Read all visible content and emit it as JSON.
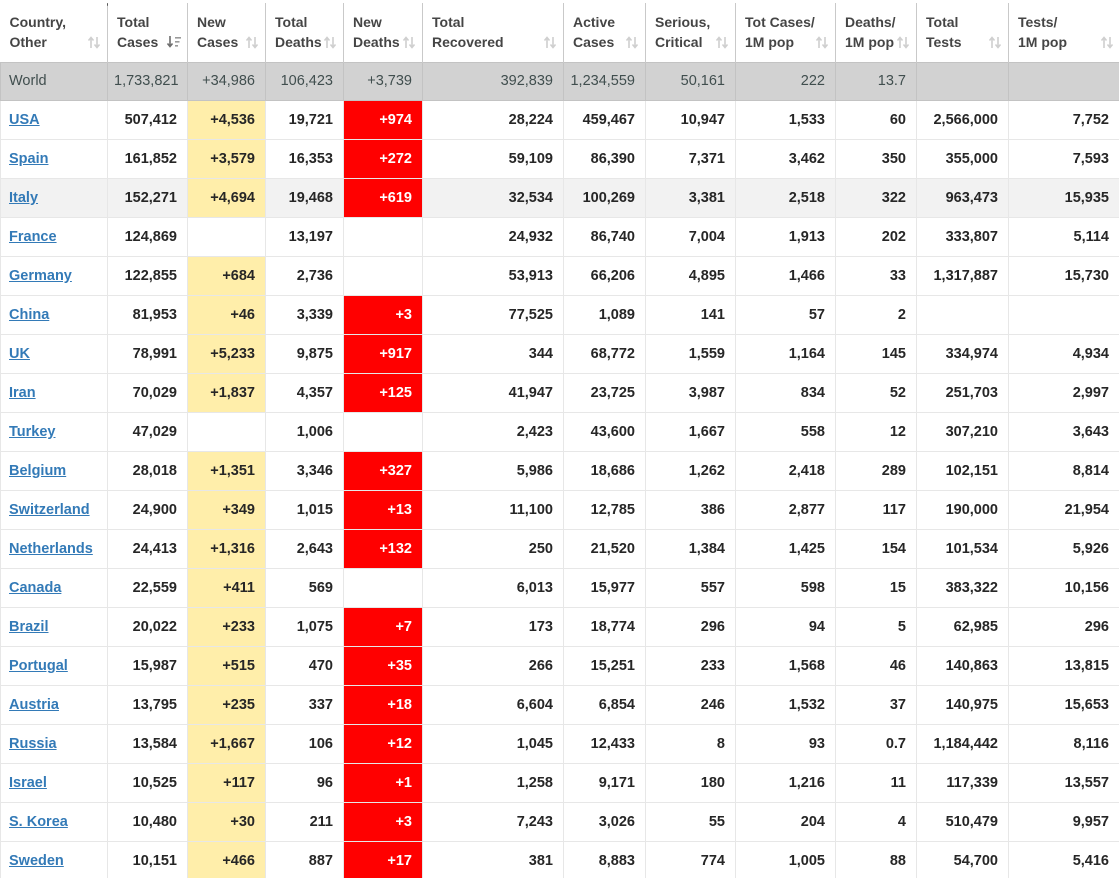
{
  "colors": {
    "new_cases_bg": "#FFEEAA",
    "new_deaths_bg": "#FF0000",
    "world_row_bg": "#D2D2D2",
    "highlight_row_bg": "#F2F2F2",
    "link_blue": "#337AB7",
    "header_text": "#454545",
    "cell_text": "#262626"
  },
  "table": {
    "columns": [
      {
        "key": "country",
        "line1": "Country,",
        "line2": "Other",
        "sort": "inactive",
        "sort_icon": "sort-updown-icon"
      },
      {
        "key": "total_cases",
        "line1": "Total",
        "line2": "Cases",
        "sort": "desc",
        "sort_icon": "sort-amount-desc-icon"
      },
      {
        "key": "new_cases",
        "line1": "New",
        "line2": "Cases",
        "sort": "inactive",
        "sort_icon": "sort-updown-icon"
      },
      {
        "key": "total_deaths",
        "line1": "Total",
        "line2": "Deaths",
        "sort": "inactive",
        "sort_icon": "sort-updown-icon"
      },
      {
        "key": "new_deaths",
        "line1": "New",
        "line2": "Deaths",
        "sort": "inactive",
        "sort_icon": "sort-updown-icon"
      },
      {
        "key": "total_recovered",
        "line1": "Total",
        "line2": "Recovered",
        "sort": "inactive",
        "sort_icon": "sort-updown-icon"
      },
      {
        "key": "active_cases",
        "line1": "Active",
        "line2": "Cases",
        "sort": "inactive",
        "sort_icon": "sort-updown-icon"
      },
      {
        "key": "serious_critical",
        "line1": "Serious,",
        "line2": "Critical",
        "sort": "inactive",
        "sort_icon": "sort-updown-icon"
      },
      {
        "key": "tot_cases_1m",
        "line1": "Tot Cases/",
        "line2": "1M pop",
        "sort": "inactive",
        "sort_icon": "sort-updown-icon"
      },
      {
        "key": "deaths_1m",
        "line1": "Deaths/",
        "line2": "1M pop",
        "sort": "inactive",
        "sort_icon": "sort-updown-icon"
      },
      {
        "key": "total_tests",
        "line1": "Total",
        "line2": "Tests",
        "sort": "inactive",
        "sort_icon": "sort-updown-icon"
      },
      {
        "key": "tests_1m",
        "line1": "Tests/",
        "line2": "1M pop",
        "sort": "inactive",
        "sort_icon": "sort-updown-icon"
      }
    ],
    "world_row": {
      "country": "World",
      "total_cases": "1,733,821",
      "new_cases": "+34,986",
      "total_deaths": "106,423",
      "new_deaths": "+3,739",
      "total_recovered": "392,839",
      "active_cases": "1,234,559",
      "serious_critical": "50,161",
      "tot_cases_1m": "222",
      "deaths_1m": "13.7",
      "total_tests": "",
      "tests_1m": ""
    },
    "rows": [
      {
        "country": "USA",
        "total_cases": "507,412",
        "new_cases": "+4,536",
        "total_deaths": "19,721",
        "new_deaths": "+974",
        "total_recovered": "28,224",
        "active_cases": "459,467",
        "serious_critical": "10,947",
        "tot_cases_1m": "1,533",
        "deaths_1m": "60",
        "total_tests": "2,566,000",
        "tests_1m": "7,752",
        "highlighted": false
      },
      {
        "country": "Spain",
        "total_cases": "161,852",
        "new_cases": "+3,579",
        "total_deaths": "16,353",
        "new_deaths": "+272",
        "total_recovered": "59,109",
        "active_cases": "86,390",
        "serious_critical": "7,371",
        "tot_cases_1m": "3,462",
        "deaths_1m": "350",
        "total_tests": "355,000",
        "tests_1m": "7,593",
        "highlighted": false
      },
      {
        "country": "Italy",
        "total_cases": "152,271",
        "new_cases": "+4,694",
        "total_deaths": "19,468",
        "new_deaths": "+619",
        "total_recovered": "32,534",
        "active_cases": "100,269",
        "serious_critical": "3,381",
        "tot_cases_1m": "2,518",
        "deaths_1m": "322",
        "total_tests": "963,473",
        "tests_1m": "15,935",
        "highlighted": true
      },
      {
        "country": "France",
        "total_cases": "124,869",
        "new_cases": "",
        "total_deaths": "13,197",
        "new_deaths": "",
        "total_recovered": "24,932",
        "active_cases": "86,740",
        "serious_critical": "7,004",
        "tot_cases_1m": "1,913",
        "deaths_1m": "202",
        "total_tests": "333,807",
        "tests_1m": "5,114",
        "highlighted": false
      },
      {
        "country": "Germany",
        "total_cases": "122,855",
        "new_cases": "+684",
        "total_deaths": "2,736",
        "new_deaths": "",
        "total_recovered": "53,913",
        "active_cases": "66,206",
        "serious_critical": "4,895",
        "tot_cases_1m": "1,466",
        "deaths_1m": "33",
        "total_tests": "1,317,887",
        "tests_1m": "15,730",
        "highlighted": false
      },
      {
        "country": "China",
        "total_cases": "81,953",
        "new_cases": "+46",
        "total_deaths": "3,339",
        "new_deaths": "+3",
        "total_recovered": "77,525",
        "active_cases": "1,089",
        "serious_critical": "141",
        "tot_cases_1m": "57",
        "deaths_1m": "2",
        "total_tests": "",
        "tests_1m": "",
        "highlighted": false
      },
      {
        "country": "UK",
        "total_cases": "78,991",
        "new_cases": "+5,233",
        "total_deaths": "9,875",
        "new_deaths": "+917",
        "total_recovered": "344",
        "active_cases": "68,772",
        "serious_critical": "1,559",
        "tot_cases_1m": "1,164",
        "deaths_1m": "145",
        "total_tests": "334,974",
        "tests_1m": "4,934",
        "highlighted": false
      },
      {
        "country": "Iran",
        "total_cases": "70,029",
        "new_cases": "+1,837",
        "total_deaths": "4,357",
        "new_deaths": "+125",
        "total_recovered": "41,947",
        "active_cases": "23,725",
        "serious_critical": "3,987",
        "tot_cases_1m": "834",
        "deaths_1m": "52",
        "total_tests": "251,703",
        "tests_1m": "2,997",
        "highlighted": false
      },
      {
        "country": "Turkey",
        "total_cases": "47,029",
        "new_cases": "",
        "total_deaths": "1,006",
        "new_deaths": "",
        "total_recovered": "2,423",
        "active_cases": "43,600",
        "serious_critical": "1,667",
        "tot_cases_1m": "558",
        "deaths_1m": "12",
        "total_tests": "307,210",
        "tests_1m": "3,643",
        "highlighted": false
      },
      {
        "country": "Belgium",
        "total_cases": "28,018",
        "new_cases": "+1,351",
        "total_deaths": "3,346",
        "new_deaths": "+327",
        "total_recovered": "5,986",
        "active_cases": "18,686",
        "serious_critical": "1,262",
        "tot_cases_1m": "2,418",
        "deaths_1m": "289",
        "total_tests": "102,151",
        "tests_1m": "8,814",
        "highlighted": false
      },
      {
        "country": "Switzerland",
        "total_cases": "24,900",
        "new_cases": "+349",
        "total_deaths": "1,015",
        "new_deaths": "+13",
        "total_recovered": "11,100",
        "active_cases": "12,785",
        "serious_critical": "386",
        "tot_cases_1m": "2,877",
        "deaths_1m": "117",
        "total_tests": "190,000",
        "tests_1m": "21,954",
        "highlighted": false
      },
      {
        "country": "Netherlands",
        "total_cases": "24,413",
        "new_cases": "+1,316",
        "total_deaths": "2,643",
        "new_deaths": "+132",
        "total_recovered": "250",
        "active_cases": "21,520",
        "serious_critical": "1,384",
        "tot_cases_1m": "1,425",
        "deaths_1m": "154",
        "total_tests": "101,534",
        "tests_1m": "5,926",
        "highlighted": false
      },
      {
        "country": "Canada",
        "total_cases": "22,559",
        "new_cases": "+411",
        "total_deaths": "569",
        "new_deaths": "",
        "total_recovered": "6,013",
        "active_cases": "15,977",
        "serious_critical": "557",
        "tot_cases_1m": "598",
        "deaths_1m": "15",
        "total_tests": "383,322",
        "tests_1m": "10,156",
        "highlighted": false
      },
      {
        "country": "Brazil",
        "total_cases": "20,022",
        "new_cases": "+233",
        "total_deaths": "1,075",
        "new_deaths": "+7",
        "total_recovered": "173",
        "active_cases": "18,774",
        "serious_critical": "296",
        "tot_cases_1m": "94",
        "deaths_1m": "5",
        "total_tests": "62,985",
        "tests_1m": "296",
        "highlighted": false
      },
      {
        "country": "Portugal",
        "total_cases": "15,987",
        "new_cases": "+515",
        "total_deaths": "470",
        "new_deaths": "+35",
        "total_recovered": "266",
        "active_cases": "15,251",
        "serious_critical": "233",
        "tot_cases_1m": "1,568",
        "deaths_1m": "46",
        "total_tests": "140,863",
        "tests_1m": "13,815",
        "highlighted": false
      },
      {
        "country": "Austria",
        "total_cases": "13,795",
        "new_cases": "+235",
        "total_deaths": "337",
        "new_deaths": "+18",
        "total_recovered": "6,604",
        "active_cases": "6,854",
        "serious_critical": "246",
        "tot_cases_1m": "1,532",
        "deaths_1m": "37",
        "total_tests": "140,975",
        "tests_1m": "15,653",
        "highlighted": false
      },
      {
        "country": "Russia",
        "total_cases": "13,584",
        "new_cases": "+1,667",
        "total_deaths": "106",
        "new_deaths": "+12",
        "total_recovered": "1,045",
        "active_cases": "12,433",
        "serious_critical": "8",
        "tot_cases_1m": "93",
        "deaths_1m": "0.7",
        "total_tests": "1,184,442",
        "tests_1m": "8,116",
        "highlighted": false
      },
      {
        "country": "Israel",
        "total_cases": "10,525",
        "new_cases": "+117",
        "total_deaths": "96",
        "new_deaths": "+1",
        "total_recovered": "1,258",
        "active_cases": "9,171",
        "serious_critical": "180",
        "tot_cases_1m": "1,216",
        "deaths_1m": "11",
        "total_tests": "117,339",
        "tests_1m": "13,557",
        "highlighted": false
      },
      {
        "country": "S. Korea",
        "total_cases": "10,480",
        "new_cases": "+30",
        "total_deaths": "211",
        "new_deaths": "+3",
        "total_recovered": "7,243",
        "active_cases": "3,026",
        "serious_critical": "55",
        "tot_cases_1m": "204",
        "deaths_1m": "4",
        "total_tests": "510,479",
        "tests_1m": "9,957",
        "highlighted": false
      },
      {
        "country": "Sweden",
        "total_cases": "10,151",
        "new_cases": "+466",
        "total_deaths": "887",
        "new_deaths": "+17",
        "total_recovered": "381",
        "active_cases": "8,883",
        "serious_critical": "774",
        "tot_cases_1m": "1,005",
        "deaths_1m": "88",
        "total_tests": "54,700",
        "tests_1m": "5,416",
        "highlighted": false
      }
    ]
  }
}
